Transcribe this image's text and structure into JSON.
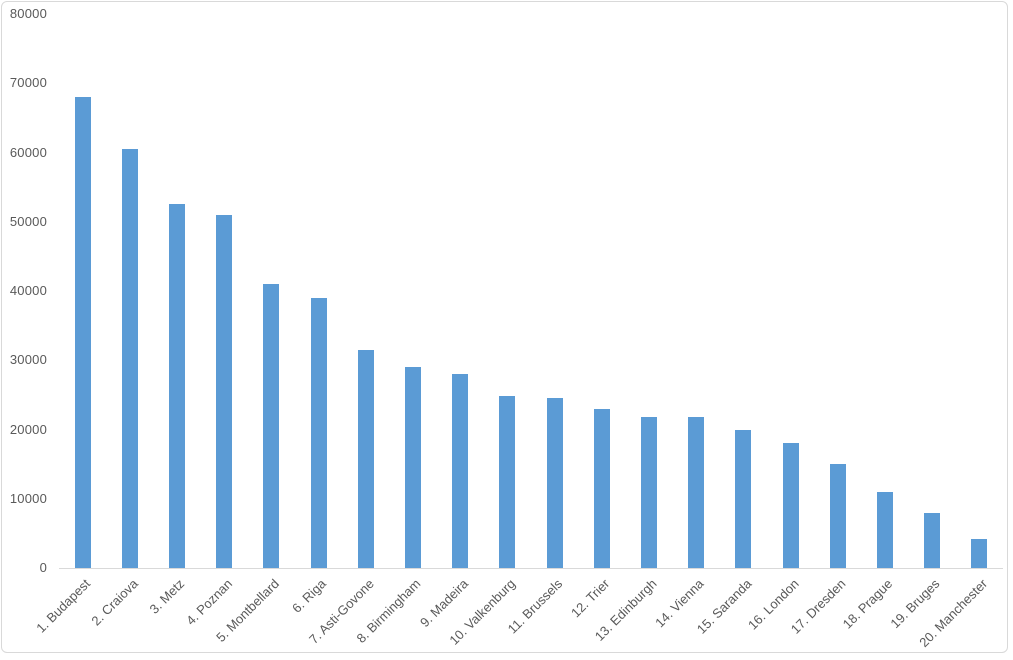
{
  "chart_data": {
    "type": "bar",
    "title": "",
    "xlabel": "",
    "ylabel": "",
    "categories": [
      "1. Budapest",
      "2. Craiova",
      "3. Metz",
      "4. Poznan",
      "5. Montbellard",
      "6. Riga",
      "7. Asti-Govone",
      "8. Birmingham",
      "9. Madeira",
      "10. Valkenburg",
      "11. Brussels",
      "12. Trier",
      "13. Edinburgh",
      "14. Vienna",
      "15. Saranda",
      "16. London",
      "17. Dresden",
      "18. Prague",
      "19. Bruges",
      "20. Manchester"
    ],
    "values": [
      68000,
      60500,
      52500,
      51000,
      41000,
      39000,
      31500,
      29000,
      28000,
      24800,
      24500,
      23000,
      21800,
      21800,
      20000,
      18000,
      15000,
      11000,
      8000,
      4200
    ],
    "ylim": [
      0,
      80000
    ],
    "ytick_interval": 10000,
    "ytick_labels": [
      "0",
      "10000",
      "20000",
      "30000",
      "40000",
      "50000",
      "60000",
      "70000",
      "80000"
    ],
    "grid": false,
    "legend": false,
    "x_label_rotation_deg": 45,
    "bar_color": "#5b9bd5",
    "axis_text_color": "#595959",
    "axis_line_color": "#d9d9d9",
    "background_color": "#ffffff"
  }
}
